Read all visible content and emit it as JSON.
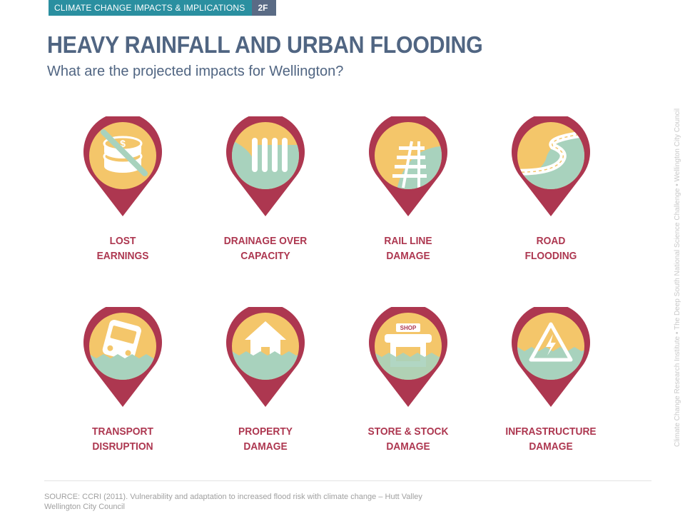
{
  "header": {
    "section_label": "CLIMATE CHANGE IMPACTS & IMPLICATIONS",
    "section_code": "2F"
  },
  "title": "HEAVY RAINFALL AND URBAN FLOODING",
  "subtitle": "What are the projected impacts for Wellington?",
  "side_credit": "Climate Change Research Institute  •  The Deep South National Science Challenge  •  Wellington City Council",
  "impacts": [
    {
      "line1": "LOST",
      "line2": "EARNINGS",
      "icon": "coins-crossed-icon"
    },
    {
      "line1": "DRAINAGE OVER",
      "line2": "CAPACITY",
      "icon": "drain-grate-icon"
    },
    {
      "line1": "RAIL LINE",
      "line2": "DAMAGE",
      "icon": "rail-track-icon"
    },
    {
      "line1": "ROAD",
      "line2": "FLOODING",
      "icon": "winding-road-icon"
    },
    {
      "line1": "TRANSPORT",
      "line2": "DISRUPTION",
      "icon": "bus-icon"
    },
    {
      "line1": "PROPERTY",
      "line2": "DAMAGE",
      "icon": "house-icon"
    },
    {
      "line1": "STORE & STOCK",
      "line2": "DAMAGE",
      "icon": "shop-icon",
      "icon_text": "SHOP"
    },
    {
      "line1": "INFRASTRUCTURE",
      "line2": "DAMAGE",
      "icon": "electric-hazard-icon"
    }
  ],
  "source": {
    "line1": "SOURCE: CCRI (2011). Vulnerability and adaptation to increased flood risk with climate change – Hutt Valley",
    "line2": "Wellington City Council"
  },
  "colors": {
    "pin": "#ad3750",
    "yellow": "#f4c66a",
    "water": "#a8d2bd",
    "navy": "#506582",
    "teal": "#2a8fa0"
  }
}
